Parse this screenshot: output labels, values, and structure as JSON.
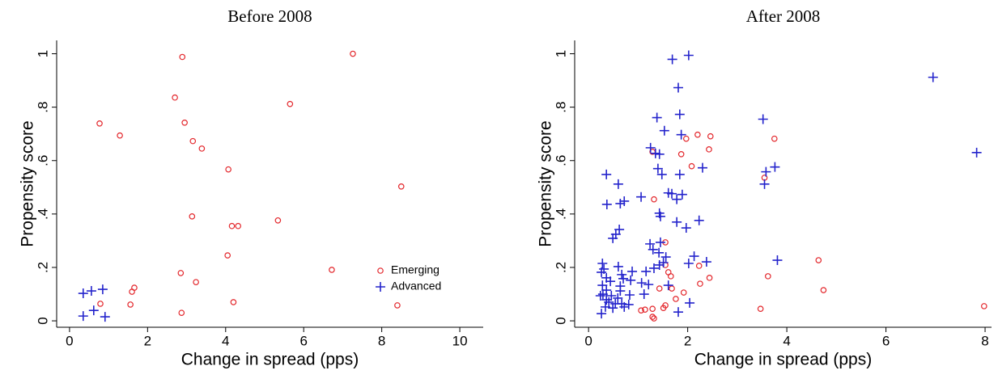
{
  "chart_data": [
    {
      "type": "scatter",
      "title": "Before 2008",
      "x_label": "Change in spread (pps)",
      "y_label": "Propensity score",
      "xlim": [
        -0.33,
        10.6
      ],
      "ylim": [
        -0.024,
        1.05
      ],
      "xticks": [
        0,
        2,
        4,
        6,
        8,
        10
      ],
      "yticks": [
        {
          "value": 0,
          "label": "0"
        },
        {
          "value": 0.2,
          "label": ".2"
        },
        {
          "value": 0.4,
          "label": ".4"
        },
        {
          "value": 0.6,
          "label": ".6"
        },
        {
          "value": 0.8,
          "label": ".8"
        },
        {
          "value": 1,
          "label": "1"
        }
      ],
      "legend": "lower right",
      "series": [
        {
          "name": "Emerging",
          "color": "#e3262b",
          "marker": "circle",
          "x": [
            2.89,
            7.26,
            2.7,
            0.77,
            2.95,
            1.29,
            3.16,
            3.39,
            5.65,
            4.07,
            8.5,
            3.14,
            5.34,
            4.16,
            4.32,
            4.05,
            6.72,
            2.85,
            3.24,
            1.66,
            1.6,
            1.56,
            0.79,
            4.2,
            2.87,
            8.4
          ],
          "values": [
            0.988,
            1.0,
            0.836,
            0.739,
            0.742,
            0.694,
            0.673,
            0.645,
            0.812,
            0.567,
            0.503,
            0.391,
            0.376,
            0.355,
            0.355,
            0.245,
            0.191,
            0.179,
            0.145,
            0.124,
            0.109,
            0.061,
            0.064,
            0.07,
            0.03,
            0.058
          ]
        },
        {
          "name": "Advanced",
          "color": "#2424cc",
          "marker": "plus",
          "x": [
            0.35,
            0.35,
            0.56,
            0.85,
            0.62,
            0.91
          ],
          "values": [
            0.018,
            0.103,
            0.112,
            0.118,
            0.039,
            0.015
          ]
        }
      ]
    },
    {
      "type": "scatter",
      "title": "After 2008",
      "x_label": "Change in spread (pps)",
      "y_label": "Propensity score",
      "xlim": [
        -0.28,
        8.13
      ],
      "ylim": [
        -0.024,
        1.05
      ],
      "xticks": [
        0,
        2,
        4,
        6,
        8
      ],
      "yticks": [
        {
          "value": 0,
          "label": "0"
        },
        {
          "value": 0.2,
          "label": ".2"
        },
        {
          "value": 0.4,
          "label": ".4"
        },
        {
          "value": 0.6,
          "label": ".6"
        },
        {
          "value": 0.8,
          "label": ".8"
        },
        {
          "value": 1,
          "label": "1"
        }
      ],
      "series": [
        {
          "color": "#e3262b",
          "marker": "circle",
          "x": [
            2.2,
            1.97,
            2.46,
            2.43,
            1.87,
            2.08,
            3.75,
            3.55,
            1.29,
            1.32,
            1.55,
            1.61,
            1.66,
            1.55,
            2.23,
            2.44,
            2.25,
            3.62,
            4.64,
            4.74,
            3.47,
            7.98,
            1.68,
            1.92,
            1.76,
            1.55,
            1.51,
            1.14,
            1.06,
            1.43,
            1.29,
            1.29,
            1.32
          ],
          "values": [
            0.697,
            0.682,
            0.691,
            0.642,
            0.624,
            0.579,
            0.682,
            0.536,
            0.633,
            0.455,
            0.209,
            0.182,
            0.167,
            0.294,
            0.206,
            0.161,
            0.139,
            0.167,
            0.227,
            0.115,
            0.045,
            0.055,
            0.121,
            0.106,
            0.082,
            0.058,
            0.048,
            0.042,
            0.039,
            0.121,
            0.045,
            0.015,
            0.009
          ]
        },
        {
          "color": "#2424cc",
          "marker": "plus",
          "x": [
            1.69,
            2.02,
            1.81,
            6.95,
            7.83,
            1.38,
            1.84,
            3.52,
            1.53,
            1.87,
            1.25,
            1.35,
            1.43,
            0.36,
            1.4,
            1.48,
            1.84,
            2.3,
            3.55,
            3.58,
            3.76,
            0.6,
            1.61,
            1.68,
            1.78,
            1.89,
            1.43,
            1.45,
            0.37,
            0.64,
            0.72,
            1.06,
            1.78,
            2.23,
            1.97,
            0.55,
            0.62,
            0.49,
            1.24,
            1.45,
            1.3,
            1.42,
            1.56,
            2.02,
            2.38,
            3.81,
            2.13,
            1.51,
            1.43,
            1.32,
            1.16,
            0.88,
            0.67,
            0.7,
            0.85,
            1.07,
            1.21,
            1.61,
            1.12,
            0.28,
            0.31,
            0.26,
            0.36,
            0.44,
            0.28,
            0.36,
            0.29,
            0.36,
            0.46,
            0.59,
            0.54,
            0.64,
            0.67,
            0.81,
            0.26,
            0.72,
            0.41,
            0.49,
            0.64,
            0.83,
            2.04,
            1.81,
            0.6,
            0.34,
            0.24
          ],
          "values": [
            0.979,
            0.994,
            0.873,
            0.912,
            0.63,
            0.761,
            0.773,
            0.755,
            0.712,
            0.697,
            0.648,
            0.627,
            0.624,
            0.548,
            0.57,
            0.548,
            0.548,
            0.573,
            0.512,
            0.558,
            0.576,
            0.512,
            0.479,
            0.476,
            0.455,
            0.473,
            0.403,
            0.391,
            0.436,
            0.439,
            0.448,
            0.464,
            0.37,
            0.376,
            0.348,
            0.324,
            0.342,
            0.309,
            0.288,
            0.294,
            0.267,
            0.255,
            0.239,
            0.215,
            0.221,
            0.227,
            0.242,
            0.218,
            0.209,
            0.197,
            0.185,
            0.185,
            0.173,
            0.158,
            0.152,
            0.142,
            0.136,
            0.133,
            0.1,
            0.215,
            0.194,
            0.182,
            0.161,
            0.148,
            0.133,
            0.115,
            0.1,
            0.079,
            0.094,
            0.085,
            0.064,
            0.112,
            0.064,
            0.061,
            0.027,
            0.052,
            0.07,
            0.048,
            0.13,
            0.097,
            0.067,
            0.033,
            0.203,
            0.052,
            0.094
          ]
        }
      ]
    }
  ]
}
